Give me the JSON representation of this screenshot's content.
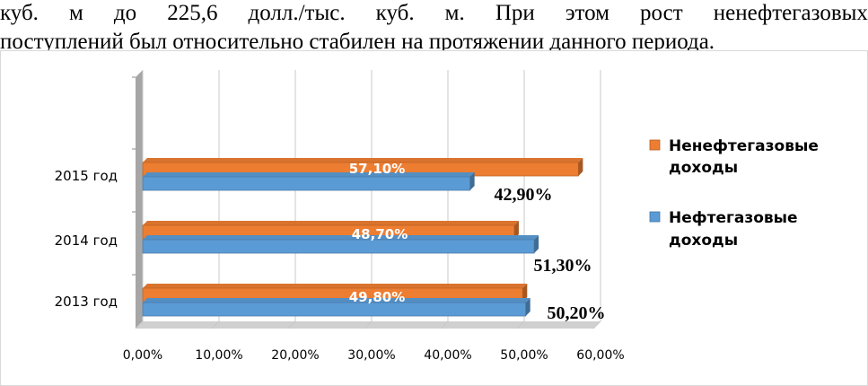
{
  "document": {
    "line1_words": [
      "куб.",
      "м",
      "до",
      "225,6",
      "долл./тыс.",
      "куб.",
      "м.",
      "При",
      "этом",
      "рост",
      "ненефтегазовых"
    ],
    "line2": "поступлений был относительно стабилен на протяжении данного периода."
  },
  "chart_data": {
    "type": "bar",
    "orientation": "horizontal",
    "categories": [
      "2013 год",
      "2014 год",
      "2015 год"
    ],
    "series": [
      {
        "name": "Ненефтегазовые доходы",
        "color": "#ED7D31",
        "values": [
          49.8,
          48.7,
          57.1
        ],
        "labels": [
          "49,80%",
          "48,70%",
          "57,10%"
        ]
      },
      {
        "name": "Нефтегазовые доходы",
        "color": "#5B9BD5",
        "values": [
          50.2,
          51.3,
          42.9
        ],
        "labels": [
          "50,20%",
          "51,30%",
          "42,90%"
        ]
      }
    ],
    "xlim": [
      0,
      60
    ],
    "x_ticks": [
      "0,00%",
      "10,00%",
      "20,00%",
      "30,00%",
      "40,00%",
      "50,00%",
      "60,00%"
    ],
    "grid": true,
    "legend_position": "right"
  }
}
